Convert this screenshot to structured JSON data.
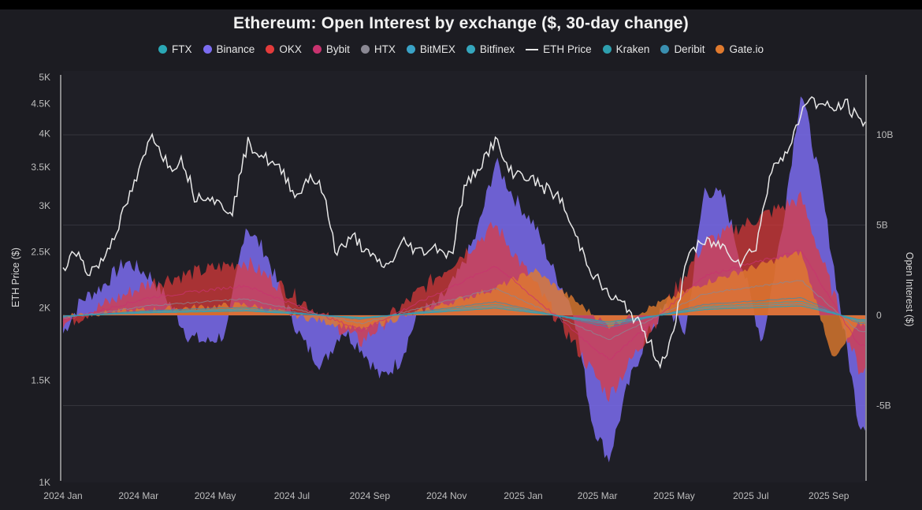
{
  "title": "Ethereum: Open Interest by exchange ($, 30-day change)",
  "chart_data": {
    "type": "area",
    "title": "Ethereum: Open Interest by exchange ($, 30-day change)",
    "left_axis": {
      "label": "ETH Price ($)",
      "scale": "log",
      "range": [
        1000,
        5000
      ],
      "ticks": [
        1000,
        1500,
        2000,
        2500,
        3000,
        3500,
        4000,
        4500,
        5000
      ],
      "tick_labels": [
        "1K",
        "1.5K",
        "2K",
        "2.5K",
        "3K",
        "3.5K",
        "4K",
        "4.5K",
        "5K"
      ]
    },
    "right_axis": {
      "label": "Open Interest ($)",
      "range": [
        -9,
        13
      ],
      "ticks": [
        -5,
        0,
        5,
        10
      ],
      "tick_labels": [
        "-5B",
        "0",
        "5B",
        "10B"
      ],
      "units": "billions USD"
    },
    "x_axis": {
      "range": [
        "2024-01-01",
        "2025-09-30"
      ],
      "ticks": [
        "2024-01-01",
        "2024-03-01",
        "2024-05-01",
        "2024-07-01",
        "2024-09-01",
        "2024-11-01",
        "2025-01-01",
        "2025-03-01",
        "2025-05-01",
        "2025-07-01",
        "2025-09-01"
      ],
      "tick_labels": [
        "2024 Jan",
        "2024 Mar",
        "2024 May",
        "2024 Jul",
        "2024 Sep",
        "2024 Nov",
        "2025 Jan",
        "2025 Mar",
        "2025 May",
        "2025 Jul",
        "2025 Sep"
      ]
    },
    "grid": true,
    "legend_position": "top",
    "legend": [
      {
        "name": "FTX",
        "color": "#2aa7b5",
        "kind": "dot"
      },
      {
        "name": "Binance",
        "color": "#7b6cf0",
        "kind": "dot"
      },
      {
        "name": "OKX",
        "color": "#e33b3b",
        "kind": "dot"
      },
      {
        "name": "Bybit",
        "color": "#c8336f",
        "kind": "dot"
      },
      {
        "name": "HTX",
        "color": "#8a8893",
        "kind": "dot"
      },
      {
        "name": "BitMEX",
        "color": "#3aa2c6",
        "kind": "dot"
      },
      {
        "name": "Bitfinex",
        "color": "#35a6bd",
        "kind": "dot"
      },
      {
        "name": "ETH Price",
        "color": "#e8e8e8",
        "kind": "line"
      },
      {
        "name": "Kraken",
        "color": "#2e9fae",
        "kind": "dot"
      },
      {
        "name": "Deribit",
        "color": "#3a8fb0",
        "kind": "dot"
      },
      {
        "name": "Gate.io",
        "color": "#e07a2e",
        "kind": "dot"
      }
    ],
    "series": [
      {
        "name": "ETH Price",
        "axis": "left",
        "x": [
          "2024-01-01",
          "2024-01-10",
          "2024-01-20",
          "2024-02-01",
          "2024-02-15",
          "2024-03-01",
          "2024-03-12",
          "2024-03-25",
          "2024-04-05",
          "2024-04-15",
          "2024-04-25",
          "2024-05-05",
          "2024-05-15",
          "2024-05-27",
          "2024-06-05",
          "2024-06-15",
          "2024-06-25",
          "2024-07-05",
          "2024-07-15",
          "2024-07-25",
          "2024-08-05",
          "2024-08-20",
          "2024-09-01",
          "2024-09-15",
          "2024-09-28",
          "2024-10-10",
          "2024-10-25",
          "2024-11-05",
          "2024-11-15",
          "2024-11-30",
          "2024-12-10",
          "2024-12-20",
          "2025-01-01",
          "2025-01-15",
          "2025-01-30",
          "2025-02-10",
          "2025-02-25",
          "2025-03-10",
          "2025-03-25",
          "2025-04-08",
          "2025-04-20",
          "2025-05-01",
          "2025-05-12",
          "2025-05-28",
          "2025-06-10",
          "2025-06-22",
          "2025-07-05",
          "2025-07-20",
          "2025-08-01",
          "2025-08-14",
          "2025-08-24",
          "2025-09-05",
          "2025-09-15",
          "2025-09-25"
        ],
        "values": [
          2300,
          2550,
          2300,
          2400,
          2800,
          3400,
          4000,
          3500,
          3600,
          3100,
          3150,
          3000,
          2950,
          3850,
          3700,
          3550,
          3400,
          3100,
          3400,
          3200,
          2500,
          2650,
          2450,
          2350,
          2600,
          2500,
          2550,
          2450,
          3200,
          3600,
          3900,
          3450,
          3400,
          3250,
          3100,
          2700,
          2300,
          2100,
          2000,
          1800,
          1600,
          1800,
          2500,
          2600,
          2550,
          2400,
          2550,
          3600,
          3750,
          4600,
          4500,
          4400,
          4500,
          4200
        ]
      },
      {
        "name": "Binance",
        "axis": "right",
        "x": [
          "2024-01-01",
          "2024-01-15",
          "2024-02-01",
          "2024-02-20",
          "2024-03-10",
          "2024-03-25",
          "2024-04-10",
          "2024-04-25",
          "2024-05-10",
          "2024-05-25",
          "2024-06-10",
          "2024-06-25",
          "2024-07-10",
          "2024-07-25",
          "2024-08-10",
          "2024-08-25",
          "2024-09-10",
          "2024-09-25",
          "2024-10-10",
          "2024-10-25",
          "2024-11-10",
          "2024-11-25",
          "2024-12-10",
          "2024-12-25",
          "2025-01-10",
          "2025-01-25",
          "2025-02-10",
          "2025-02-25",
          "2025-03-10",
          "2025-03-25",
          "2025-04-10",
          "2025-04-25",
          "2025-05-10",
          "2025-05-25",
          "2025-06-10",
          "2025-06-25",
          "2025-07-10",
          "2025-07-25",
          "2025-08-10",
          "2025-08-25",
          "2025-09-10",
          "2025-09-25"
        ],
        "values": [
          -1,
          0.8,
          1.6,
          3,
          2.2,
          0.8,
          -1.2,
          -1.5,
          -1.0,
          5,
          3.5,
          0.8,
          -1.5,
          -2.8,
          -0.8,
          -1.8,
          -3.5,
          -2.5,
          0.2,
          0.6,
          2.2,
          4.5,
          8.5,
          6.5,
          5.0,
          2.5,
          0.3,
          -6.0,
          -8.0,
          -4.0,
          -1.0,
          0.5,
          -1.0,
          7,
          6.5,
          2.5,
          -1.5,
          4.5,
          12.5,
          7.5,
          0.5,
          -6.0
        ]
      },
      {
        "name": "OKX",
        "axis": "right",
        "x": [
          "2024-01-01",
          "2024-03-10",
          "2024-05-25",
          "2024-08-25",
          "2024-12-10",
          "2025-03-10",
          "2025-05-25",
          "2025-08-10",
          "2025-09-25"
        ],
        "values": [
          -0.5,
          1.8,
          3.0,
          -1.5,
          5.0,
          -4.5,
          4.0,
          6.5,
          -3.0
        ]
      },
      {
        "name": "Gate.io",
        "axis": "right",
        "x": [
          "2024-01-01",
          "2024-03-10",
          "2024-05-25",
          "2024-08-25",
          "2024-12-10",
          "2025-01-10",
          "2025-03-10",
          "2025-05-25",
          "2025-08-10",
          "2025-09-05",
          "2025-09-25"
        ],
        "values": [
          0,
          0.3,
          0.6,
          -0.8,
          1.5,
          2.5,
          -0.6,
          1.8,
          3.5,
          -2.5,
          -0.5
        ]
      }
    ]
  }
}
